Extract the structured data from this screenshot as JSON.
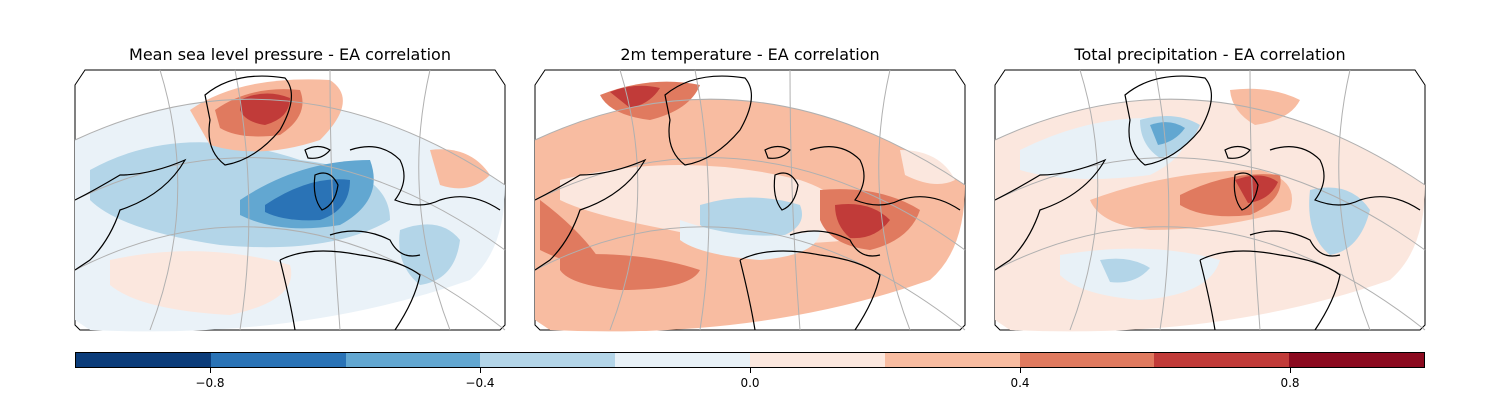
{
  "panels": [
    {
      "title": "Mean sea level pressure - EA correlation"
    },
    {
      "title": "2m temperature - EA correlation"
    },
    {
      "title": "Total precipitation - EA correlation"
    }
  ],
  "colorbar": {
    "min": -1.0,
    "max": 1.0,
    "colors": [
      "#0b3c7a",
      "#2a73b6",
      "#62a7d1",
      "#b3d5e8",
      "#e8f1f7",
      "#fbe7de",
      "#f8bca1",
      "#e07a5f",
      "#c13b39",
      "#8b0a1f"
    ],
    "ticks": [
      {
        "value": -0.8,
        "label": "−0.8"
      },
      {
        "value": -0.4,
        "label": "−0.4"
      },
      {
        "value": 0.0,
        "label": "0.0"
      },
      {
        "value": 0.4,
        "label": "0.4"
      },
      {
        "value": 0.8,
        "label": "0.8"
      }
    ]
  }
}
